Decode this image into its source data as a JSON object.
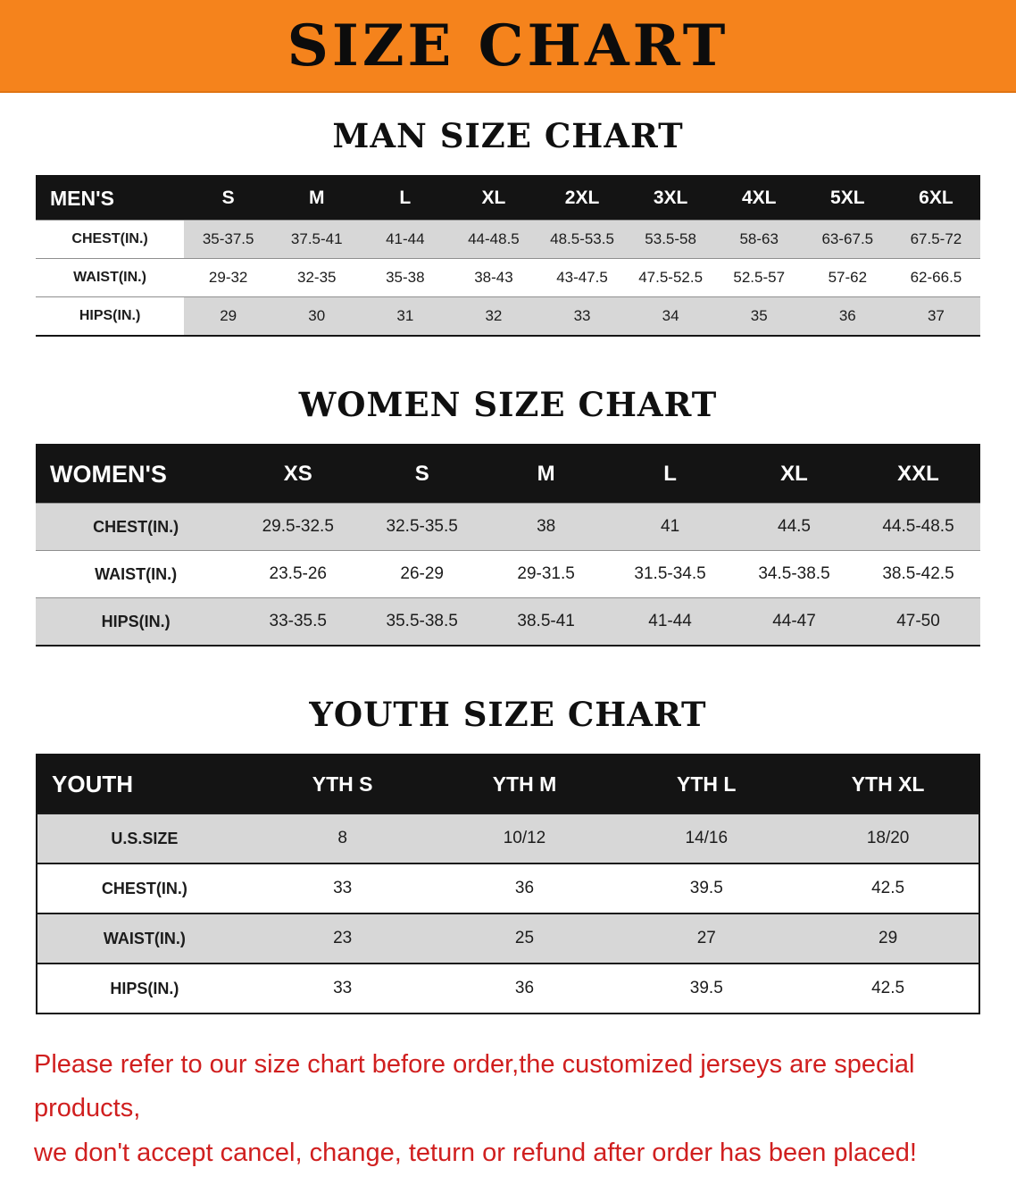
{
  "banner": {
    "title": "SIZE CHART",
    "bg_color": "#F5831C"
  },
  "sections": [
    {
      "id": "mens",
      "heading": "MAN SIZE CHART",
      "table": {
        "header": [
          "MEN'S",
          "S",
          "M",
          "L",
          "XL",
          "2XL",
          "3XL",
          "4XL",
          "5XL",
          "6XL"
        ],
        "rows": [
          [
            "CHEST(IN.)",
            "35-37.5",
            "37.5-41",
            "41-44",
            "44-48.5",
            "48.5-53.5",
            "53.5-58",
            "58-63",
            "63-67.5",
            "67.5-72"
          ],
          [
            "WAIST(IN.)",
            "29-32",
            "32-35",
            "35-38",
            "38-43",
            "43-47.5",
            "47.5-52.5",
            "52.5-57",
            "57-62",
            "62-66.5"
          ],
          [
            "HIPS(IN.)",
            "29",
            "30",
            "31",
            "32",
            "33",
            "34",
            "35",
            "36",
            "37"
          ]
        ]
      }
    },
    {
      "id": "womens",
      "heading": "WOMEN SIZE CHART",
      "table": {
        "header": [
          "WOMEN'S",
          "XS",
          "S",
          "M",
          "L",
          "XL",
          "XXL"
        ],
        "rows": [
          [
            "CHEST(IN.)",
            "29.5-32.5",
            "32.5-35.5",
            "38",
            "41",
            "44.5",
            "44.5-48.5"
          ],
          [
            "WAIST(IN.)",
            "23.5-26",
            "26-29",
            "29-31.5",
            "31.5-34.5",
            "34.5-38.5",
            "38.5-42.5"
          ],
          [
            "HIPS(IN.)",
            "33-35.5",
            "35.5-38.5",
            "38.5-41",
            "41-44",
            "44-47",
            "47-50"
          ]
        ]
      }
    },
    {
      "id": "youth",
      "heading": "YOUTH SIZE CHART",
      "table": {
        "header": [
          "YOUTH",
          "YTH S",
          "YTH M",
          "YTH L",
          "YTH XL"
        ],
        "rows": [
          [
            "U.S.SIZE",
            "8",
            "10/12",
            "14/16",
            "18/20"
          ],
          [
            "CHEST(IN.)",
            "33",
            "36",
            "39.5",
            "42.5"
          ],
          [
            "WAIST(IN.)",
            "23",
            "25",
            "27",
            "29"
          ],
          [
            "HIPS(IN.)",
            "33",
            "36",
            "39.5",
            "42.5"
          ]
        ]
      }
    }
  ],
  "disclaimer": {
    "line1": "Please refer to our size chart before order,the customized jerseys are special products,",
    "line2": "we don't accept cancel, change, teturn or refund after order has been placed!",
    "color": "#d01f1f"
  }
}
